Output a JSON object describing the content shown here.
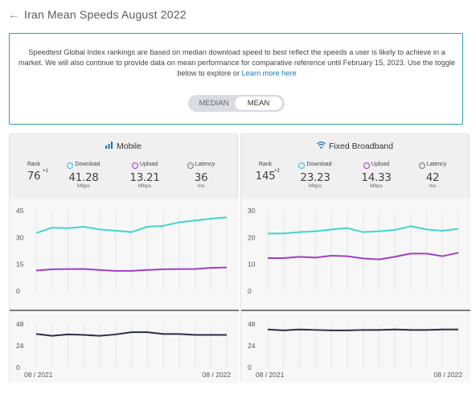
{
  "header": {
    "title": "Iran Mean Speeds August 2022",
    "back_icon": "arrow-left-icon"
  },
  "info": {
    "text": "Speedtest Global Index rankings are based on median download speed to best reflect the speeds a user is likely to achieve in a market. We will also continue to provide data on mean performance for comparative reference until February 15, 2023. Use the toggle below to explore or",
    "link": "Learn more here"
  },
  "toggle": {
    "options": [
      "MEDIAN",
      "MEAN"
    ],
    "selected": "MEAN"
  },
  "colors": {
    "download": "#40d6cf",
    "upload": "#a03fc4",
    "latency": "#2a2f45",
    "accent": "#2aa1b3"
  },
  "panels": [
    {
      "title": "Mobile",
      "icon": "signal-bars-icon",
      "stats": {
        "rank": {
          "label": "Rank",
          "value": "76",
          "delta": "+1"
        },
        "download": {
          "label": "Download",
          "value": "41.28",
          "unit": "Mbps"
        },
        "upload": {
          "label": "Upload",
          "value": "13.21",
          "unit": "Mbps"
        },
        "latency": {
          "label": "Latency",
          "value": "36",
          "unit": "ms"
        }
      }
    },
    {
      "title": "Fixed Broadband",
      "icon": "wifi-icon",
      "stats": {
        "rank": {
          "label": "Rank",
          "value": "145",
          "delta": "+2"
        },
        "download": {
          "label": "Download",
          "value": "23.23",
          "unit": "Mbps"
        },
        "upload": {
          "label": "Upload",
          "value": "14.33",
          "unit": "Mbps"
        },
        "latency": {
          "label": "Latency",
          "value": "42",
          "unit": "ms"
        }
      }
    }
  ],
  "chart_data": [
    {
      "type": "line",
      "title": "Mobile speeds",
      "x": [
        "08 / 2021",
        "09 / 2021",
        "10 / 2021",
        "11 / 2021",
        "12 / 2021",
        "01 / 2022",
        "02 / 2022",
        "03 / 2022",
        "04 / 2022",
        "05 / 2022",
        "06 / 2022",
        "07 / 2022",
        "08 / 2022"
      ],
      "x_tick_labels": [
        "08 / 2021",
        "08 / 2022"
      ],
      "yticks": [
        "45",
        "30",
        "15",
        "0"
      ],
      "ylim": [
        0,
        45
      ],
      "series": [
        {
          "name": "Download",
          "values": [
            32.5,
            35.5,
            35.2,
            36,
            34.5,
            33.8,
            33,
            36,
            36.5,
            38.5,
            39.5,
            40.5,
            41.3
          ]
        },
        {
          "name": "Upload",
          "values": [
            11.5,
            12.2,
            12.3,
            12.4,
            11.8,
            11.3,
            11.3,
            11.8,
            12.2,
            12.3,
            12.4,
            13,
            13.2
          ]
        }
      ],
      "latency": {
        "yticks": [
          "48",
          "24",
          "0"
        ],
        "ylim": [
          0,
          48
        ],
        "name": "Latency",
        "values": [
          37,
          35,
          36.5,
          36,
          35,
          36.5,
          39,
          39,
          37,
          37,
          36,
          36,
          36
        ]
      }
    },
    {
      "type": "line",
      "title": "Fixed Broadband speeds",
      "x": [
        "08 / 2021",
        "09 / 2021",
        "10 / 2021",
        "11 / 2021",
        "12 / 2021",
        "01 / 2022",
        "02 / 2022",
        "03 / 2022",
        "04 / 2022",
        "05 / 2022",
        "06 / 2022",
        "07 / 2022",
        "08 / 2022"
      ],
      "x_tick_labels": [
        "08 / 2021",
        "08 / 2022"
      ],
      "yticks": [
        "30",
        "20",
        "10",
        "0"
      ],
      "ylim": [
        0,
        30
      ],
      "series": [
        {
          "name": "Download",
          "values": [
            21.5,
            21.5,
            22,
            22.3,
            23,
            23.5,
            22,
            22.3,
            22.8,
            24.2,
            23,
            22.5,
            23.2
          ]
        },
        {
          "name": "Upload",
          "values": [
            12.3,
            12.3,
            12.8,
            12.5,
            13.2,
            13,
            12.2,
            11.8,
            12.8,
            14,
            14,
            13,
            14.3
          ]
        }
      ],
      "latency": {
        "yticks": [
          "48",
          "24",
          "0"
        ],
        "ylim": [
          0,
          48
        ],
        "name": "Latency",
        "values": [
          42,
          41,
          42,
          41.5,
          41,
          41,
          41.5,
          41.5,
          42,
          41.5,
          41.5,
          42,
          42
        ]
      }
    }
  ]
}
